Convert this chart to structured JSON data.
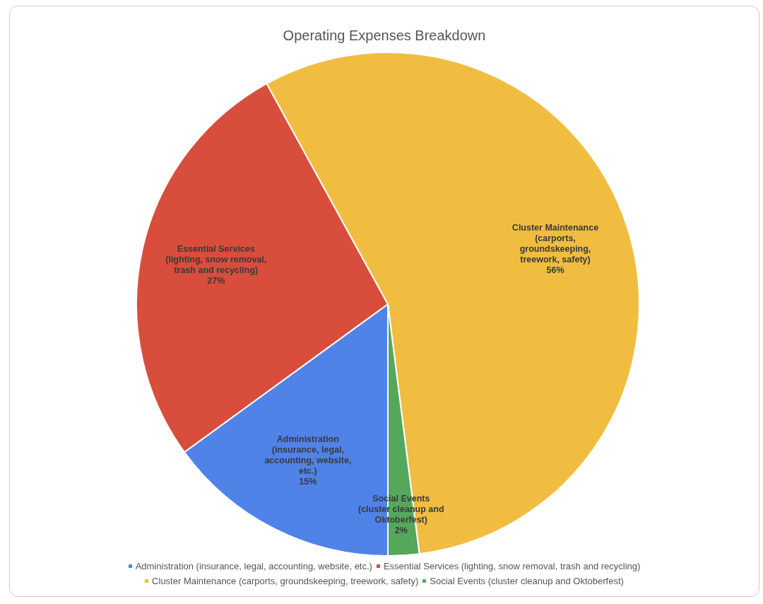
{
  "chart_data": {
    "type": "pie",
    "title": "Operating Expenses Breakdown",
    "categories": [
      "Administration (insurance, legal, accounting, website, etc.)",
      "Essential Services (lighting, snow removal, trash and recycling)",
      "Cluster Maintenance (carports, groundskeeping, treework, safety)",
      "Social Events (cluster cleanup and Oktoberfest)"
    ],
    "values": [
      15,
      27,
      56,
      2
    ],
    "colors": [
      "#5083e8",
      "#d94d3d",
      "#f0bd40",
      "#55a85b"
    ],
    "value_labels": [
      "15%",
      "27%",
      "56%",
      "2%"
    ],
    "legend": "bottom"
  }
}
